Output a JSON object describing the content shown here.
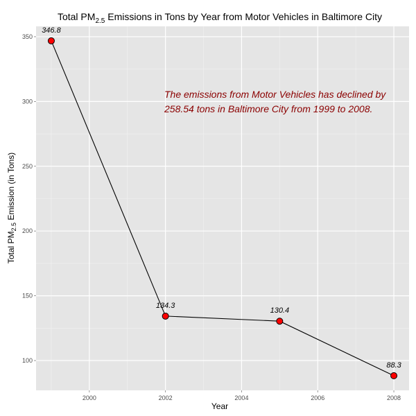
{
  "chart_data": {
    "type": "line",
    "title": {
      "prefix": "Total PM",
      "subscript": "2.5",
      "suffix": " Emissions in Tons by Year from Motor Vehicles in Baltimore City"
    },
    "xlabel": "Year",
    "ylabel": {
      "prefix": "Total PM",
      "subscript": "2.5",
      "suffix": " Emission (in Tons)"
    },
    "x": [
      1999,
      2002,
      2005,
      2008
    ],
    "values": [
      346.8,
      134.3,
      130.4,
      88.3
    ],
    "point_labels": [
      "346.8",
      "134.3",
      "130.4",
      "88.3"
    ],
    "xlim": [
      1998.6,
      2008.4
    ],
    "ylim": [
      77,
      358
    ],
    "x_ticks": [
      2000,
      2002,
      2004,
      2006,
      2008
    ],
    "x_tick_labels": [
      "2000",
      "2002",
      "2004",
      "2006",
      "2008"
    ],
    "y_ticks": [
      100,
      150,
      200,
      250,
      300,
      350
    ],
    "y_tick_labels": [
      "100",
      "150",
      "200",
      "250",
      "300",
      "350"
    ],
    "grid": true,
    "annotation": {
      "lines": [
        "The emissions from Motor Vehicles has declined by",
        "258.54 tons in Baltimore City from 1999 to 2008."
      ],
      "color": "#8b0000"
    },
    "colors": {
      "panel": "#e5e5e5",
      "grid_major": "#ffffff",
      "grid_minor": "#f2f2f2",
      "line": "#000000",
      "point_fill": "#ff0000",
      "point_stroke": "#000000"
    }
  }
}
